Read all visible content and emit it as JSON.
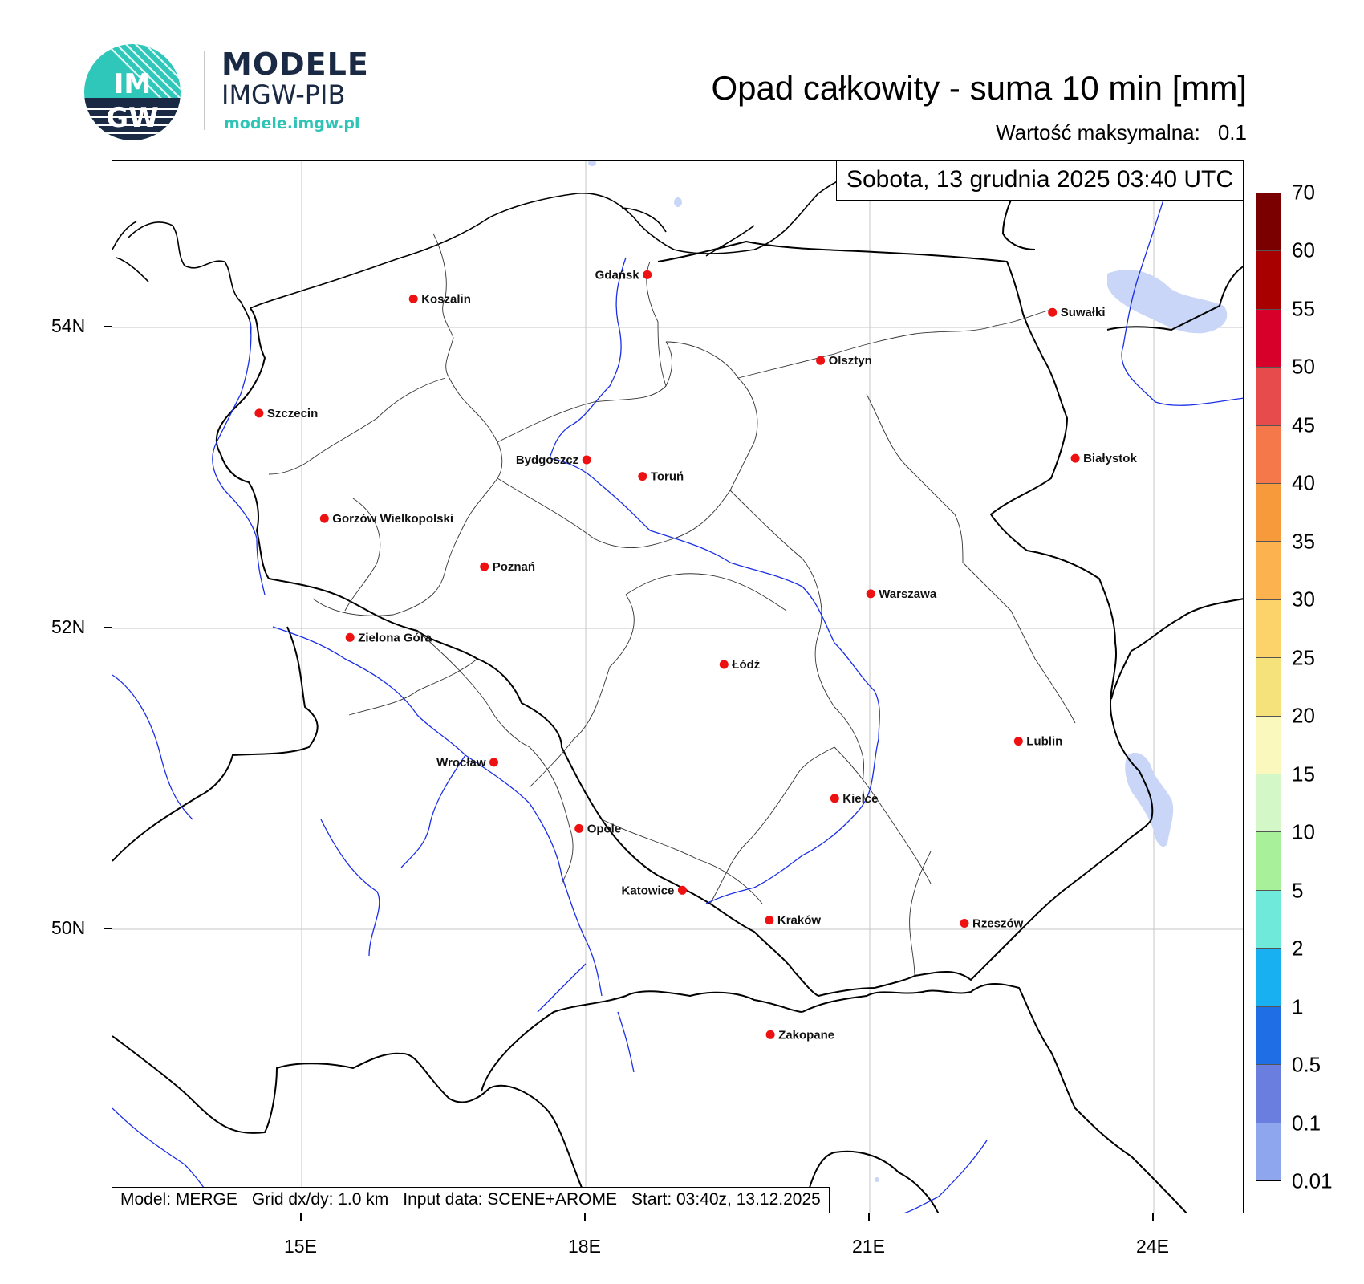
{
  "brand": {
    "logo_text_top": "IM",
    "logo_text_bottom": "GW",
    "name": "MODELE",
    "org": "IMGW-PIB",
    "url": "modele.imgw.pl"
  },
  "title": "Opad całkowity - suma 10 min [mm]",
  "max_label": "Wartość maksymalna:",
  "max_value": "0.1",
  "date_text": "Sobota, 13 grudnia 2025 03:40 UTC",
  "footer": {
    "model": "Model: MERGE",
    "grid": "Grid dx/dy: 1.0 km",
    "input": "Input data: SCENE+AROME",
    "start": "Start: 03:40z, 13.12.2025"
  },
  "axes": {
    "lat_labels": [
      "54N",
      "52N",
      "50N"
    ],
    "lon_labels": [
      "15E",
      "18E",
      "21E",
      "24E"
    ]
  },
  "cities": [
    {
      "name": "Gdańsk",
      "lon": 18.65,
      "lat": 54.35
    },
    {
      "name": "Koszalin",
      "lon": 16.18,
      "lat": 54.19
    },
    {
      "name": "Suwałki",
      "lon": 22.93,
      "lat": 54.1
    },
    {
      "name": "Olsztyn",
      "lon": 20.48,
      "lat": 53.78
    },
    {
      "name": "Szczecin",
      "lon": 14.55,
      "lat": 53.43
    },
    {
      "name": "Białystok",
      "lon": 23.17,
      "lat": 53.13
    },
    {
      "name": "Bydgoszcz",
      "lon": 18.01,
      "lat": 53.12
    },
    {
      "name": "Toruń",
      "lon": 18.6,
      "lat": 53.01
    },
    {
      "name": "Gorzów Wielkopolski",
      "lon": 15.24,
      "lat": 52.73
    },
    {
      "name": "Poznań",
      "lon": 16.93,
      "lat": 52.41
    },
    {
      "name": "Warszawa",
      "lon": 21.01,
      "lat": 52.23
    },
    {
      "name": "Zielona Góra",
      "lon": 15.51,
      "lat": 51.94
    },
    {
      "name": "Łódź",
      "lon": 19.46,
      "lat": 51.76
    },
    {
      "name": "Lublin",
      "lon": 22.57,
      "lat": 51.25
    },
    {
      "name": "Wrocław",
      "lon": 17.03,
      "lat": 51.11
    },
    {
      "name": "Kielce",
      "lon": 20.63,
      "lat": 50.87
    },
    {
      "name": "Opole",
      "lon": 17.93,
      "lat": 50.67
    },
    {
      "name": "Katowice",
      "lon": 19.02,
      "lat": 50.26
    },
    {
      "name": "Kraków",
      "lon": 19.94,
      "lat": 50.06
    },
    {
      "name": "Rzeszów",
      "lon": 22.0,
      "lat": 50.04
    },
    {
      "name": "Zakopane",
      "lon": 19.95,
      "lat": 49.3
    }
  ],
  "colorbar": {
    "labels": [
      "70",
      "60",
      "55",
      "50",
      "45",
      "40",
      "35",
      "30",
      "25",
      "20",
      "15",
      "10",
      "5",
      "2",
      "1",
      "0.5",
      "0.1",
      "0.01"
    ],
    "colors": [
      "#7a0000",
      "#a80000",
      "#d6002a",
      "#e84b4b",
      "#f5784a",
      "#f79a3c",
      "#fbb24f",
      "#fbd36a",
      "#f6e27a",
      "#fbf8bd",
      "#d4f7c8",
      "#a9f09a",
      "#6fe9d9",
      "#18b0f0",
      "#1f6ee6",
      "#6a7ee0",
      "#8ea6ee",
      "#cbd6f7"
    ]
  }
}
